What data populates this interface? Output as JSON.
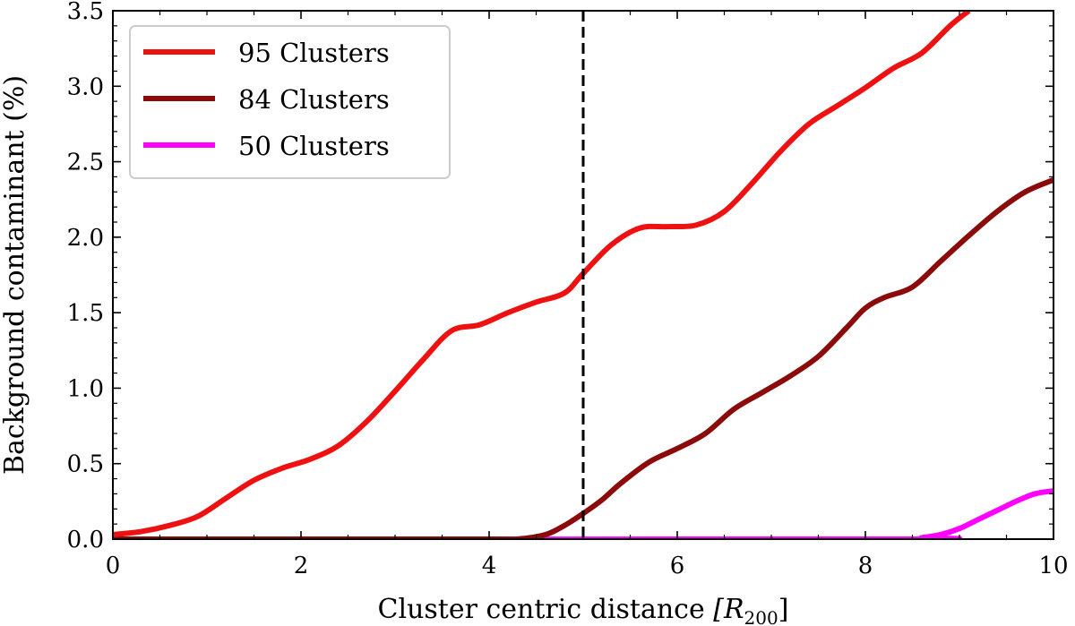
{
  "chart_data": {
    "type": "line",
    "title": "",
    "xlabel": "Cluster centric distance",
    "xlabel_math": "[R",
    "xlabel_sub": "200",
    "xlabel_close": "]",
    "ylabel": "Background contaminant (%)",
    "xlim": [
      0,
      10
    ],
    "ylim": [
      0,
      3.5
    ],
    "grid": false,
    "legend_position": "top-left",
    "x_ticks": [
      {
        "value": 0,
        "label": "0"
      },
      {
        "value": 2,
        "label": "2"
      },
      {
        "value": 4,
        "label": "4"
      },
      {
        "value": 6,
        "label": "6"
      },
      {
        "value": 8,
        "label": "8"
      },
      {
        "value": 10,
        "label": "10"
      }
    ],
    "y_ticks": [
      {
        "value": 0.0,
        "label": "0.0"
      },
      {
        "value": 0.5,
        "label": "0.5"
      },
      {
        "value": 1.0,
        "label": "1.0"
      },
      {
        "value": 1.5,
        "label": "1.5"
      },
      {
        "value": 2.0,
        "label": "2.0"
      },
      {
        "value": 2.5,
        "label": "2.5"
      },
      {
        "value": 3.0,
        "label": "3.0"
      },
      {
        "value": 3.5,
        "label": "3.5"
      }
    ],
    "vertical_line": {
      "x": 5,
      "style": "dashed",
      "color": "#000000"
    },
    "series": [
      {
        "name": "95 Clusters",
        "color": "#ee1111",
        "x": [
          0,
          0.3,
          0.6,
          0.9,
          1.2,
          1.5,
          1.8,
          2.1,
          2.4,
          2.7,
          3.0,
          3.3,
          3.6,
          3.9,
          4.2,
          4.5,
          4.8,
          5.0,
          5.3,
          5.6,
          5.9,
          6.2,
          6.5,
          6.8,
          7.1,
          7.4,
          7.7,
          8.0,
          8.3,
          8.6,
          8.9,
          9.1
        ],
        "y": [
          0.03,
          0.05,
          0.09,
          0.15,
          0.27,
          0.39,
          0.47,
          0.53,
          0.62,
          0.78,
          0.98,
          1.19,
          1.38,
          1.42,
          1.5,
          1.57,
          1.63,
          1.76,
          1.95,
          2.06,
          2.07,
          2.08,
          2.17,
          2.36,
          2.57,
          2.75,
          2.87,
          2.99,
          3.12,
          3.22,
          3.4,
          3.5
        ]
      },
      {
        "name": "84 Clusters",
        "color": "#8b0a0a",
        "x": [
          0,
          4.0,
          4.3,
          4.6,
          4.8,
          5.0,
          5.2,
          5.4,
          5.7,
          6.0,
          6.3,
          6.6,
          6.9,
          7.2,
          7.5,
          7.8,
          8.0,
          8.2,
          8.5,
          8.8,
          9.1,
          9.4,
          9.7,
          10.0
        ],
        "y": [
          0.0,
          0.0,
          0.0,
          0.03,
          0.09,
          0.17,
          0.26,
          0.37,
          0.51,
          0.6,
          0.7,
          0.86,
          0.97,
          1.08,
          1.21,
          1.4,
          1.53,
          1.6,
          1.67,
          1.84,
          2.01,
          2.17,
          2.3,
          2.38
        ]
      },
      {
        "name": "50 Clusters",
        "color": "#ff00ff",
        "x": [
          0,
          8.3,
          8.6,
          8.8,
          9.0,
          9.2,
          9.4,
          9.6,
          9.8,
          10.0
        ],
        "y": [
          0.0,
          0.0,
          0.01,
          0.03,
          0.07,
          0.13,
          0.19,
          0.25,
          0.3,
          0.32
        ]
      }
    ]
  }
}
